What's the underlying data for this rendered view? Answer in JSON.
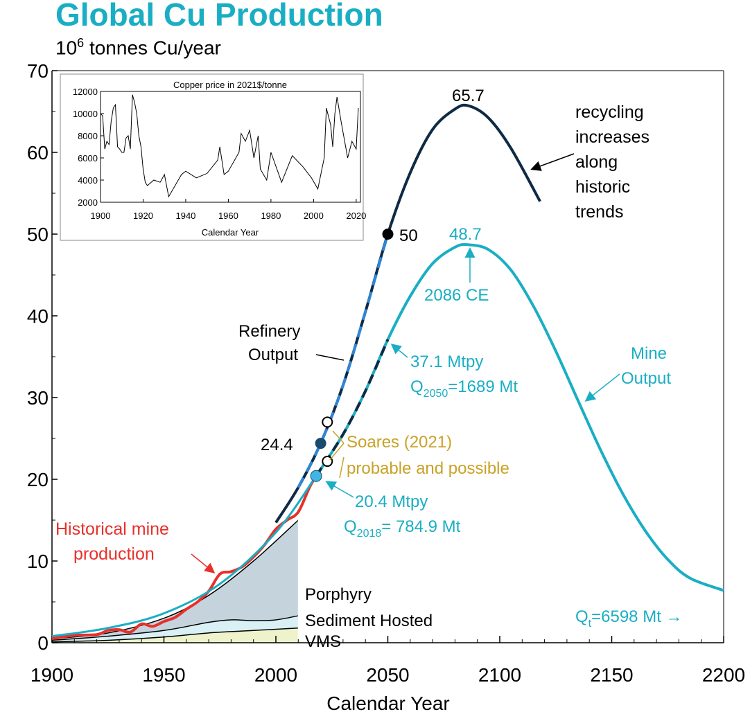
{
  "header": {
    "title": "Global Cu Production",
    "subtitle_base": "10",
    "subtitle_exp": "6",
    "subtitle_rest": " tonnes Cu/year"
  },
  "colors": {
    "dark_navy": "#0f2a44",
    "cyan": "#1aaec4",
    "red": "#e8302a",
    "gold": "#c9a227",
    "blue_dash": "#2f86d6",
    "porphyry_fill": "#c5d3dd",
    "sediment_fill": "#d9f1f5",
    "vms_fill": "#eef3cc"
  },
  "chart_data": {
    "type": "line",
    "xlabel": "Calendar Year",
    "xlim": [
      1900,
      2200
    ],
    "ylim": [
      0,
      70
    ],
    "xticks": [
      1900,
      1950,
      2000,
      2050,
      2100,
      2150,
      2200
    ],
    "yticks": [
      0,
      10,
      20,
      30,
      40,
      50,
      60,
      70
    ],
    "series": [
      {
        "name": "Refinery Output",
        "x": [
          2000,
          2010,
          2020,
          2030,
          2040,
          2050,
          2060,
          2070,
          2080,
          2086,
          2095,
          2105,
          2118
        ],
        "y": [
          14.7,
          19.0,
          24.4,
          31.5,
          40.5,
          50.0,
          57.5,
          62.8,
          65.3,
          65.7,
          64.2,
          60.5,
          54.0
        ]
      },
      {
        "name": "Mine Output",
        "x": [
          2018,
          2030,
          2040,
          2050,
          2060,
          2070,
          2080,
          2086,
          2095,
          2105,
          2115,
          2125,
          2135,
          2145,
          2155,
          2165,
          2175,
          2185,
          2200
        ],
        "y": [
          20.4,
          25.5,
          30.8,
          37.1,
          42.4,
          46.4,
          48.4,
          48.7,
          48.1,
          45.6,
          41.2,
          35.7,
          29.6,
          23.6,
          18.2,
          13.7,
          10.2,
          7.9,
          6.4
        ]
      },
      {
        "name": "Historical mine production",
        "x": [
          1900,
          1910,
          1920,
          1925,
          1930,
          1935,
          1940,
          1945,
          1950,
          1955,
          1960,
          1965,
          1970,
          1975,
          1980,
          1985,
          1990,
          1995,
          2000,
          2005,
          2010,
          2015,
          2018
        ],
        "y": [
          0.5,
          0.9,
          1.0,
          1.5,
          1.6,
          1.3,
          2.3,
          2.0,
          2.6,
          3.1,
          4.1,
          5.0,
          6.3,
          8.4,
          8.7,
          9.3,
          10.5,
          12.0,
          13.9,
          15.0,
          16.0,
          19.0,
          20.4
        ]
      }
    ],
    "stacked_areas": [
      {
        "name": "Porphyry",
        "x": [
          1900,
          1925,
          1950,
          1970,
          1990,
          2010
        ],
        "y": [
          0.5,
          1.2,
          3.0,
          5.8,
          10.0,
          15.0
        ]
      },
      {
        "name": "Sediment Hosted",
        "x": [
          1900,
          1925,
          1950,
          1970,
          1980,
          1990,
          2000,
          2010
        ],
        "y": [
          0.3,
          0.8,
          1.5,
          2.5,
          2.8,
          2.7,
          2.8,
          3.3
        ]
      },
      {
        "name": "VMS",
        "x": [
          1900,
          1925,
          1950,
          1970,
          1990,
          2010
        ],
        "y": [
          0.1,
          0.3,
          0.7,
          1.2,
          1.5,
          1.8
        ]
      }
    ],
    "points": [
      {
        "x": 2050,
        "y": 50,
        "label": "50"
      },
      {
        "x": 2020,
        "y": 24.4,
        "label": "24.4"
      },
      {
        "x": 2018,
        "y": 20.4
      },
      {
        "x": 2023,
        "y": 27.0
      },
      {
        "x": 2023,
        "y": 22.2
      }
    ],
    "annotations": {
      "peak_refinery": "65.7",
      "recycling": [
        "recycling",
        "increases",
        "along",
        "historic",
        "trends"
      ],
      "peak_mine": "48.7",
      "peak_mine_year": "2086 CE",
      "refinery_label": [
        "Refinery",
        "Output"
      ],
      "mine_label": [
        "Mine",
        "Output"
      ],
      "mtpy_2050": "37.1 Mtpy",
      "q2050_base": "Q",
      "q2050_sub": "2050",
      "q2050_rest": "=1689 Mt",
      "soares": [
        "Soares (2021)",
        "probable and possible"
      ],
      "mtpy_2018": "20.4 Mtpy",
      "q2018_base": "Q",
      "q2018_sub": "2018",
      "q2018_rest": "= 784.9 Mt",
      "historical_label": [
        "Historical mine",
        "production"
      ],
      "porphyry": "Porphyry",
      "sediment": "Sediment Hosted",
      "vms": "VMS",
      "qt_base": "Q",
      "qt_sub": "t",
      "qt_rest": "=6598 Mt →"
    },
    "inset": {
      "title": "Copper price in 2021$/tonne",
      "xlabel": "Calendar Year",
      "xlim": [
        1900,
        2022
      ],
      "ylim": [
        2000,
        12000
      ],
      "xticks": [
        1900,
        1920,
        1940,
        1960,
        1980,
        2000,
        2020
      ],
      "yticks": [
        2000,
        4000,
        6000,
        8000,
        10000,
        12000
      ],
      "x": [
        1900,
        1901,
        1902,
        1903,
        1904,
        1905,
        1906,
        1907,
        1908,
        1909,
        1910,
        1911,
        1912,
        1913,
        1914,
        1915,
        1916,
        1917,
        1918,
        1919,
        1920,
        1921,
        1922,
        1925,
        1928,
        1930,
        1932,
        1935,
        1938,
        1940,
        1945,
        1950,
        1955,
        1956,
        1958,
        1960,
        1965,
        1966,
        1968,
        1970,
        1972,
        1974,
        1975,
        1978,
        1980,
        1985,
        1990,
        1995,
        1999,
        2002,
        2005,
        2006,
        2008,
        2009,
        2010,
        2011,
        2013,
        2016,
        2018,
        2020,
        2021
      ],
      "y": [
        10000,
        9800,
        6800,
        7500,
        7200,
        9300,
        10500,
        10800,
        7000,
        6800,
        6500,
        6500,
        7800,
        8000,
        6800,
        11700,
        11000,
        10000,
        8000,
        7000,
        5000,
        3800,
        3500,
        4000,
        3800,
        4500,
        2500,
        3500,
        4500,
        4800,
        4200,
        4600,
        5800,
        7000,
        4500,
        4800,
        6500,
        8200,
        7500,
        8500,
        6000,
        8000,
        5000,
        4000,
        6500,
        3800,
        6200,
        5200,
        4200,
        3200,
        6000,
        10500,
        9000,
        7000,
        10000,
        11500,
        9200,
        6000,
        7500,
        6800,
        10500
      ]
    }
  }
}
